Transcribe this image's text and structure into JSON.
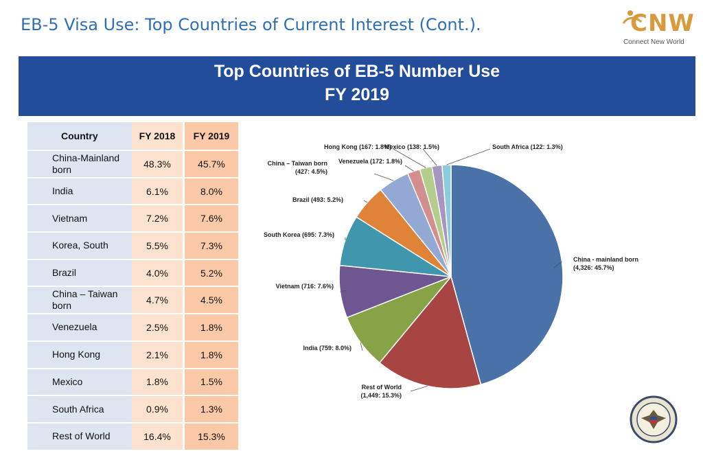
{
  "slide_title": "EB-5 Visa Use: Top Countries of Current Interest (Cont.).",
  "logo": {
    "text": "CNW",
    "tagline": "Connect New World"
  },
  "banner": {
    "line1": "Top Countries of EB-5 Number Use",
    "line2": "FY 2019"
  },
  "table": {
    "headers": [
      "Country",
      "FY 2018",
      "FY 2019"
    ],
    "rows": [
      [
        "China-Mainland born",
        "48.3%",
        "45.7%"
      ],
      [
        "India",
        "6.1%",
        "8.0%"
      ],
      [
        "Vietnam",
        "7.2%",
        "7.6%"
      ],
      [
        "Korea, South",
        "5.5%",
        "7.3%"
      ],
      [
        "Brazil",
        "4.0%",
        "5.2%"
      ],
      [
        "China – Taiwan born",
        "4.7%",
        "4.5%"
      ],
      [
        "Venezuela",
        "2.5%",
        "1.8%"
      ],
      [
        "Hong Kong",
        "2.1%",
        "1.8%"
      ],
      [
        "Mexico",
        "1.8%",
        "1.5%"
      ],
      [
        "South Africa",
        "0.9%",
        "1.3%"
      ],
      [
        "Rest of World",
        "16.4%",
        "15.3%"
      ]
    ]
  },
  "chart_data": {
    "type": "pie",
    "title": "Top Countries of EB-5 Number Use FY 2019",
    "slices": [
      {
        "label": "China - mainland born",
        "value": 4326,
        "percent": 45.7,
        "color": "#4a72a8"
      },
      {
        "label": "Rest of World",
        "value": 1449,
        "percent": 15.3,
        "color": "#a84442"
      },
      {
        "label": "India",
        "value": 759,
        "percent": 8.0,
        "color": "#88a347"
      },
      {
        "label": "Vietnam",
        "value": 716,
        "percent": 7.6,
        "color": "#6e5791"
      },
      {
        "label": "South Korea",
        "value": 695,
        "percent": 7.3,
        "color": "#3f96ad"
      },
      {
        "label": "Brazil",
        "value": 493,
        "percent": 5.2,
        "color": "#de8338"
      },
      {
        "label": "China – Taiwan born",
        "value": 427,
        "percent": 4.5,
        "color": "#93a8d2"
      },
      {
        "label": "Venezuela",
        "value": 172,
        "percent": 1.8,
        "color": "#d38f8e"
      },
      {
        "label": "Hong Kong",
        "value": 167,
        "percent": 1.8,
        "color": "#b4cd8c"
      },
      {
        "label": "Mexico",
        "value": 138,
        "percent": 1.5,
        "color": "#a796c2"
      },
      {
        "label": "South Africa",
        "value": 122,
        "percent": 1.3,
        "color": "#8ccbdc"
      }
    ],
    "data_labels": [
      [
        "China - mainland born",
        "(4,326: 45.7%)"
      ],
      [
        "Rest of World",
        "(1,449: 15.3%)"
      ],
      [
        "India (759: 8.0%)"
      ],
      [
        "Vietnam (716: 7.6%)"
      ],
      [
        "South Korea (695: 7.3%)"
      ],
      [
        "Brazil (493: 5.2%)"
      ],
      [
        "China – Taiwan born",
        "(427: 4.5%)"
      ],
      [
        "Venezuela (172: 1.8%)"
      ],
      [
        "Hong Kong (167: 1.8%)"
      ],
      [
        "Mexico (138: 1.5%)"
      ],
      [
        "South Africa (122: 1.3%)"
      ]
    ],
    "legend": "none"
  }
}
